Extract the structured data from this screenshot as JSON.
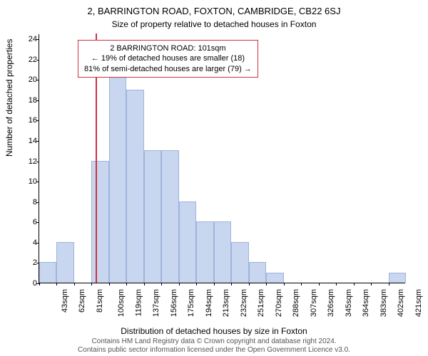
{
  "titles": {
    "main": "2, BARRINGTON ROAD, FOXTON, CAMBRIDGE, CB22 6SJ",
    "sub": "Size of property relative to detached houses in Foxton"
  },
  "axes": {
    "y_label": "Number of detached properties",
    "x_label": "Distribution of detached houses by size in Foxton",
    "y_ticks": [
      0,
      2,
      4,
      6,
      8,
      10,
      12,
      14,
      16,
      18,
      20,
      22,
      24
    ],
    "y_max": 24.5,
    "x_tick_labels": [
      "43sqm",
      "62sqm",
      "81sqm",
      "100sqm",
      "119sqm",
      "137sqm",
      "156sqm",
      "175sqm",
      "194sqm",
      "213sqm",
      "232sqm",
      "251sqm",
      "270sqm",
      "288sqm",
      "307sqm",
      "326sqm",
      "345sqm",
      "364sqm",
      "383sqm",
      "402sqm",
      "421sqm"
    ]
  },
  "histogram": {
    "type": "histogram",
    "n_bars": 21,
    "values": [
      2,
      4,
      0,
      12,
      21,
      19,
      13,
      13,
      8,
      6,
      6,
      4,
      2,
      1,
      0,
      0,
      0,
      0,
      0,
      0,
      1
    ],
    "bar_color": "#c9d6ef",
    "bar_border": "#9fb3dc",
    "bar_width_ratio": 1.0
  },
  "marker": {
    "value_sqm": 101,
    "x_lo": 43,
    "x_hi": 421,
    "color": "#cc3344"
  },
  "callout": {
    "border_color": "#cc3344",
    "line1": "2 BARRINGTON ROAD: 101sqm",
    "line2": "← 19% of detached houses are smaller (18)",
    "line3": "81% of semi-detached houses are larger (79) →"
  },
  "footer": {
    "line1": "Contains HM Land Registry data © Crown copyright and database right 2024.",
    "line2": "Contains public sector information licensed under the Open Government Licence v3.0."
  },
  "style": {
    "background": "#ffffff",
    "text_color": "#000000",
    "footer_color": "#555555",
    "title_fontsize": 13,
    "subtitle_fontsize": 12,
    "axis_label_fontsize": 12,
    "tick_fontsize": 11,
    "callout_fontsize": 11,
    "footer_fontsize": 10
  }
}
